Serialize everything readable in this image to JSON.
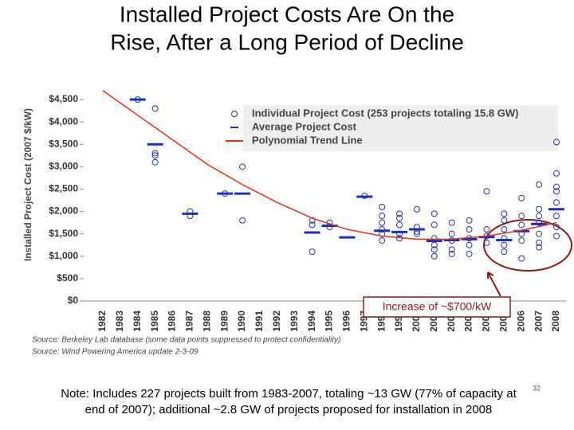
{
  "chart_data": {
    "type": "combo",
    "title_lines": [
      "Installed Project Costs Are On the",
      "Rise, After a Long Period of Decline"
    ],
    "y_label": "Installed Project Cost (2007 $/kW)",
    "categories": [
      "1982",
      "1983",
      "1984",
      "1985",
      "1986",
      "1987",
      "1988",
      "1989",
      "1990",
      "1991",
      "1992",
      "1993",
      "1994",
      "1995",
      "1996",
      "1997",
      "1998",
      "1999",
      "2000",
      "2001",
      "2002",
      "2003",
      "2004",
      "2005",
      "2006",
      "2007",
      "2008"
    ],
    "xlim": [
      1982,
      2008
    ],
    "ylim": [
      0,
      4500
    ],
    "yticks": [
      {
        "value": 0,
        "label": "$0"
      },
      {
        "value": 500,
        "label": "$500"
      },
      {
        "value": 1000,
        "label": "$1,000"
      },
      {
        "value": 1500,
        "label": "$1,500"
      },
      {
        "value": 2000,
        "label": "$2,000"
      },
      {
        "value": 2500,
        "label": "$2,500"
      },
      {
        "value": 3000,
        "label": "$3,000"
      },
      {
        "value": 3500,
        "label": "$3,500"
      },
      {
        "value": 4000,
        "label": "$4,000"
      },
      {
        "value": 4500,
        "label": "$4,500"
      }
    ],
    "series": [
      {
        "name": "Individual Project Cost (253 projects totaling 15.8 GW)",
        "type": "scatter",
        "color": "#2a3590",
        "x": [
          1984,
          1985,
          1985,
          1985,
          1985,
          1987,
          1987,
          1989,
          1990,
          1990,
          1994,
          1994,
          1994,
          1995,
          1995,
          1997,
          1998,
          1998,
          1998,
          1998,
          1998,
          1998,
          1999,
          1999,
          1999,
          1999,
          1999,
          2000,
          2000,
          2000,
          2000,
          2001,
          2001,
          2001,
          2001,
          2001,
          2001,
          2002,
          2002,
          2002,
          2002,
          2002,
          2003,
          2003,
          2003,
          2003,
          2003,
          2004,
          2004,
          2004,
          2004,
          2005,
          2005,
          2005,
          2005,
          2005,
          2005,
          2006,
          2006,
          2006,
          2006,
          2006,
          2006,
          2007,
          2007,
          2007,
          2007,
          2007,
          2007,
          2007,
          2008,
          2008,
          2008,
          2008,
          2008,
          2008,
          2008,
          2008
        ],
        "values": [
          4500,
          4300,
          3300,
          3250,
          3100,
          2000,
          1900,
          2400,
          3000,
          1800,
          1800,
          1700,
          1100,
          1750,
          1650,
          2350,
          2100,
          1900,
          1750,
          1600,
          1500,
          1350,
          1950,
          1850,
          1700,
          1500,
          1400,
          2050,
          1650,
          1550,
          1500,
          1950,
          1700,
          1400,
          1250,
          1150,
          1000,
          1750,
          1500,
          1350,
          1150,
          1050,
          1800,
          1600,
          1400,
          1250,
          1050,
          2450,
          1600,
          1450,
          1300,
          1950,
          1800,
          1600,
          1400,
          1250,
          1100,
          2300,
          1900,
          1700,
          1500,
          1350,
          950,
          2600,
          2050,
          1900,
          1750,
          1500,
          1300,
          1200,
          3550,
          2850,
          2550,
          2450,
          2200,
          1900,
          1650,
          1450
        ]
      },
      {
        "name": "Average Project Cost",
        "type": "dash",
        "color": "#1b2fbf",
        "values": [
          null,
          null,
          4500,
          3500,
          null,
          1950,
          null,
          2400,
          2400,
          null,
          null,
          null,
          1530,
          1680,
          1420,
          2330,
          1570,
          1540,
          1600,
          1340,
          1360,
          1380,
          1430,
          1360,
          1560,
          1720,
          2050
        ]
      },
      {
        "name": "Polynomial Trend Line",
        "type": "line",
        "color": "#e0301e",
        "x": [
          1982,
          1984,
          1986,
          1988,
          1990,
          1992,
          1994,
          1996,
          1998,
          2000,
          2002,
          2004,
          2006,
          2008
        ],
        "values": [
          4700,
          4150,
          3600,
          3050,
          2600,
          2200,
          1850,
          1600,
          1450,
          1380,
          1380,
          1450,
          1580,
          1750
        ]
      }
    ],
    "annotation": "Increase of ~$700/kW",
    "sources": [
      "Source: Berkeley Lab database (some data points suppressed to protect confidentiality)",
      "Source: Wind Powering America update 2-3-09"
    ],
    "note_lines": [
      "Note: Includes 227 projects built from 1983-2007, totaling ~13 GW (77% of capacity at",
      "end of 2007); additional ~2.8 GW of projects proposed for installation in 2008"
    ],
    "page_number": "32"
  }
}
